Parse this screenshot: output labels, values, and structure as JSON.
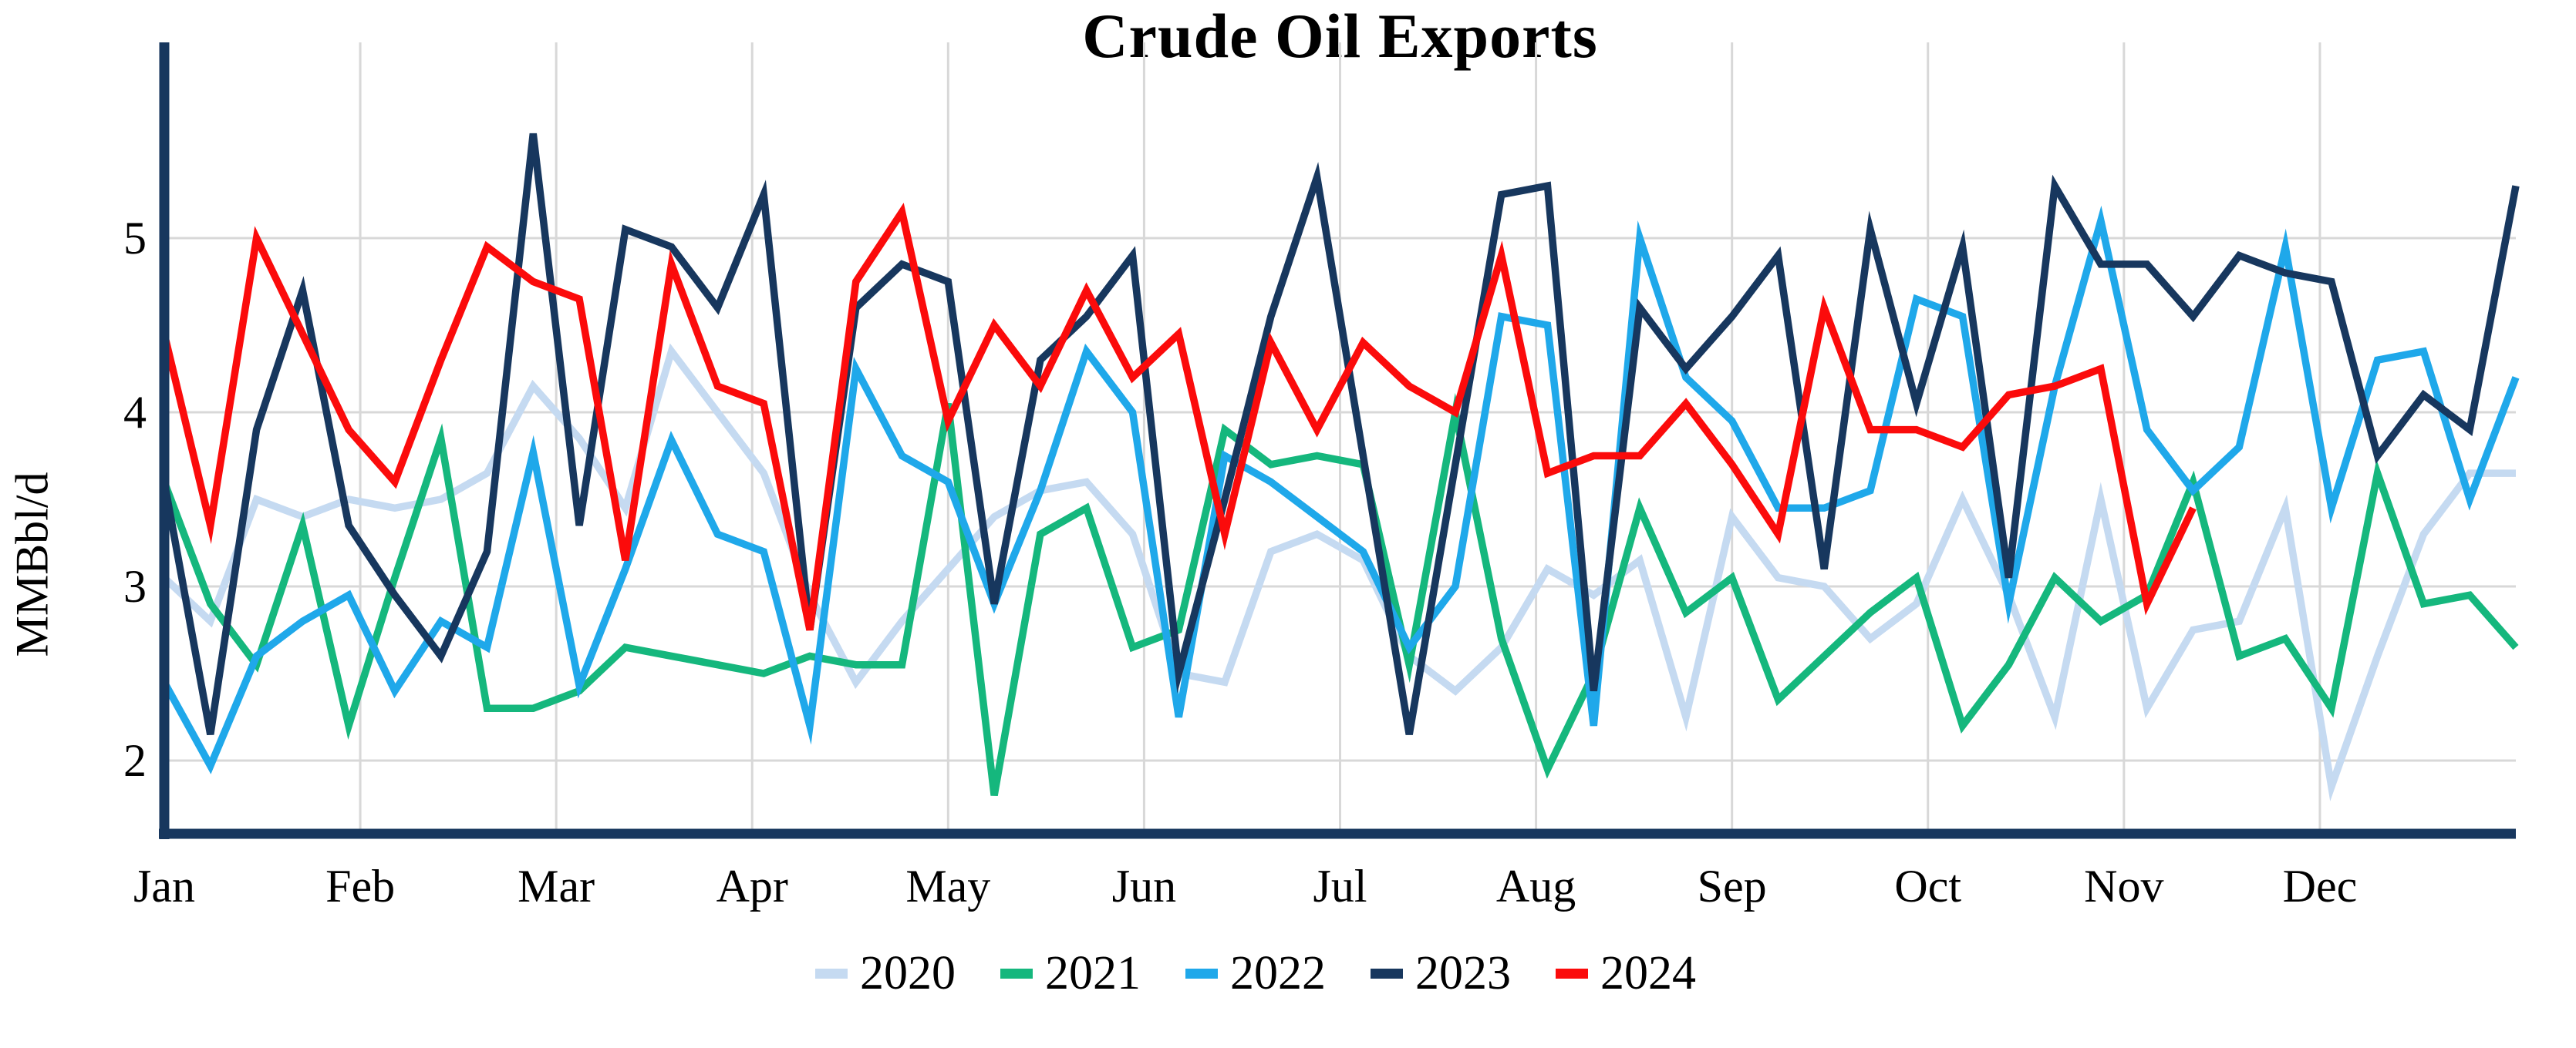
{
  "title": "Crude Oil Exports",
  "colors": {
    "axis": "#17375E",
    "gridline": "#D8D8D8",
    "series_2020": "#C5DAF1",
    "series_2021": "#15B77D",
    "series_2022": "#1FA8EA",
    "series_2023": "#17375E",
    "series_2024": "#FB0B0B"
  },
  "y_axis": {
    "title": "MMBbl/d",
    "ticks": [
      5,
      4,
      3,
      2
    ]
  },
  "x_axis": {
    "months": [
      "Jan",
      "Feb",
      "Mar",
      "Apr",
      "May",
      "Jun",
      "Jul",
      "Aug",
      "Sep",
      "Oct",
      "Nov",
      "Dec"
    ]
  },
  "legend": {
    "items": [
      "2020",
      "2021",
      "2022",
      "2023",
      "2024"
    ]
  },
  "chart_data": {
    "type": "line",
    "title": "Crude Oil Exports",
    "ylabel": "MMBbl/d",
    "xlabel": "",
    "x_unit": "week of year (52 weekly points, Jan-Dec)",
    "ylim": [
      1.55,
      6.1
    ],
    "yticks": [
      2,
      3,
      4,
      5
    ],
    "grid": true,
    "legend_position": "bottom",
    "categories_months": [
      "Jan",
      "Feb",
      "Mar",
      "Apr",
      "May",
      "Jun",
      "Jul",
      "Aug",
      "Sep",
      "Oct",
      "Nov",
      "Dec"
    ],
    "series": [
      {
        "name": "2020",
        "color": "#C5DAF1",
        "values": [
          3.05,
          2.8,
          3.5,
          3.4,
          3.5,
          3.45,
          3.5,
          3.65,
          4.15,
          3.85,
          3.45,
          4.35,
          4.0,
          3.65,
          2.95,
          2.45,
          2.8,
          3.1,
          3.4,
          3.55,
          3.6,
          3.3,
          2.5,
          2.45,
          3.2,
          3.3,
          3.15,
          2.6,
          2.4,
          2.65,
          3.1,
          2.95,
          3.15,
          2.25,
          3.4,
          3.05,
          3.0,
          2.7,
          2.9,
          3.5,
          2.95,
          2.25,
          3.5,
          2.3,
          2.75,
          2.8,
          3.45,
          1.85,
          2.6,
          3.3,
          3.65,
          3.65
        ]
      },
      {
        "name": "2021",
        "color": "#15B77D",
        "values": [
          3.6,
          2.9,
          2.55,
          3.35,
          2.2,
          3.05,
          3.85,
          2.3,
          2.3,
          2.4,
          2.65,
          2.6,
          2.55,
          2.5,
          2.6,
          2.55,
          2.55,
          4.05,
          1.8,
          3.3,
          3.45,
          2.65,
          2.75,
          3.9,
          3.7,
          3.75,
          3.7,
          2.55,
          4.0,
          2.7,
          1.95,
          2.5,
          3.45,
          2.85,
          3.05,
          2.35,
          2.6,
          2.85,
          3.05,
          2.2,
          2.55,
          3.05,
          2.8,
          2.95,
          3.6,
          2.6,
          2.7,
          2.3,
          3.65,
          2.9,
          2.95,
          2.65
        ]
      },
      {
        "name": "2022",
        "color": "#1FA8EA",
        "values": [
          2.45,
          1.97,
          2.6,
          2.8,
          2.95,
          2.4,
          2.8,
          2.65,
          3.77,
          2.43,
          3.1,
          3.84,
          3.3,
          3.2,
          2.2,
          4.25,
          3.75,
          3.6,
          2.9,
          3.55,
          4.35,
          4.0,
          2.25,
          3.75,
          3.6,
          3.4,
          3.2,
          2.65,
          3.0,
          4.55,
          4.5,
          2.2,
          5.0,
          4.2,
          3.95,
          3.45,
          3.45,
          3.55,
          4.65,
          4.55,
          2.9,
          4.15,
          5.1,
          3.9,
          3.55,
          3.8,
          4.95,
          3.45,
          4.3,
          4.35,
          3.5,
          4.2
        ]
      },
      {
        "name": "2023",
        "color": "#17375E",
        "values": [
          3.6,
          2.15,
          3.9,
          4.7,
          3.35,
          2.95,
          2.6,
          3.2,
          5.6,
          3.35,
          5.05,
          4.95,
          4.6,
          5.25,
          2.75,
          4.6,
          4.85,
          4.75,
          2.9,
          4.3,
          4.55,
          4.9,
          2.5,
          3.5,
          4.55,
          5.35,
          3.75,
          2.15,
          3.7,
          5.25,
          5.3,
          2.4,
          4.6,
          4.25,
          4.55,
          4.9,
          3.1,
          5.05,
          4.05,
          4.95,
          3.05,
          5.3,
          4.85,
          4.85,
          4.55,
          4.9,
          4.8,
          4.75,
          3.75,
          4.1,
          3.9,
          5.3
        ]
      },
      {
        "name": "2024",
        "color": "#FB0B0B",
        "values": [
          4.45,
          3.35,
          5.0,
          4.45,
          3.9,
          3.6,
          4.3,
          4.95,
          4.75,
          4.65,
          3.15,
          4.85,
          4.15,
          4.05,
          2.75,
          4.75,
          5.15,
          3.95,
          4.5,
          4.15,
          4.7,
          4.2,
          4.45,
          3.3,
          4.4,
          3.9,
          4.4,
          4.15,
          4.0,
          4.9,
          3.65,
          3.75,
          3.75,
          4.05,
          3.7,
          3.3,
          4.6,
          3.9,
          3.9,
          3.8,
          4.1,
          4.15,
          4.25,
          2.9,
          3.45
        ]
      }
    ]
  }
}
